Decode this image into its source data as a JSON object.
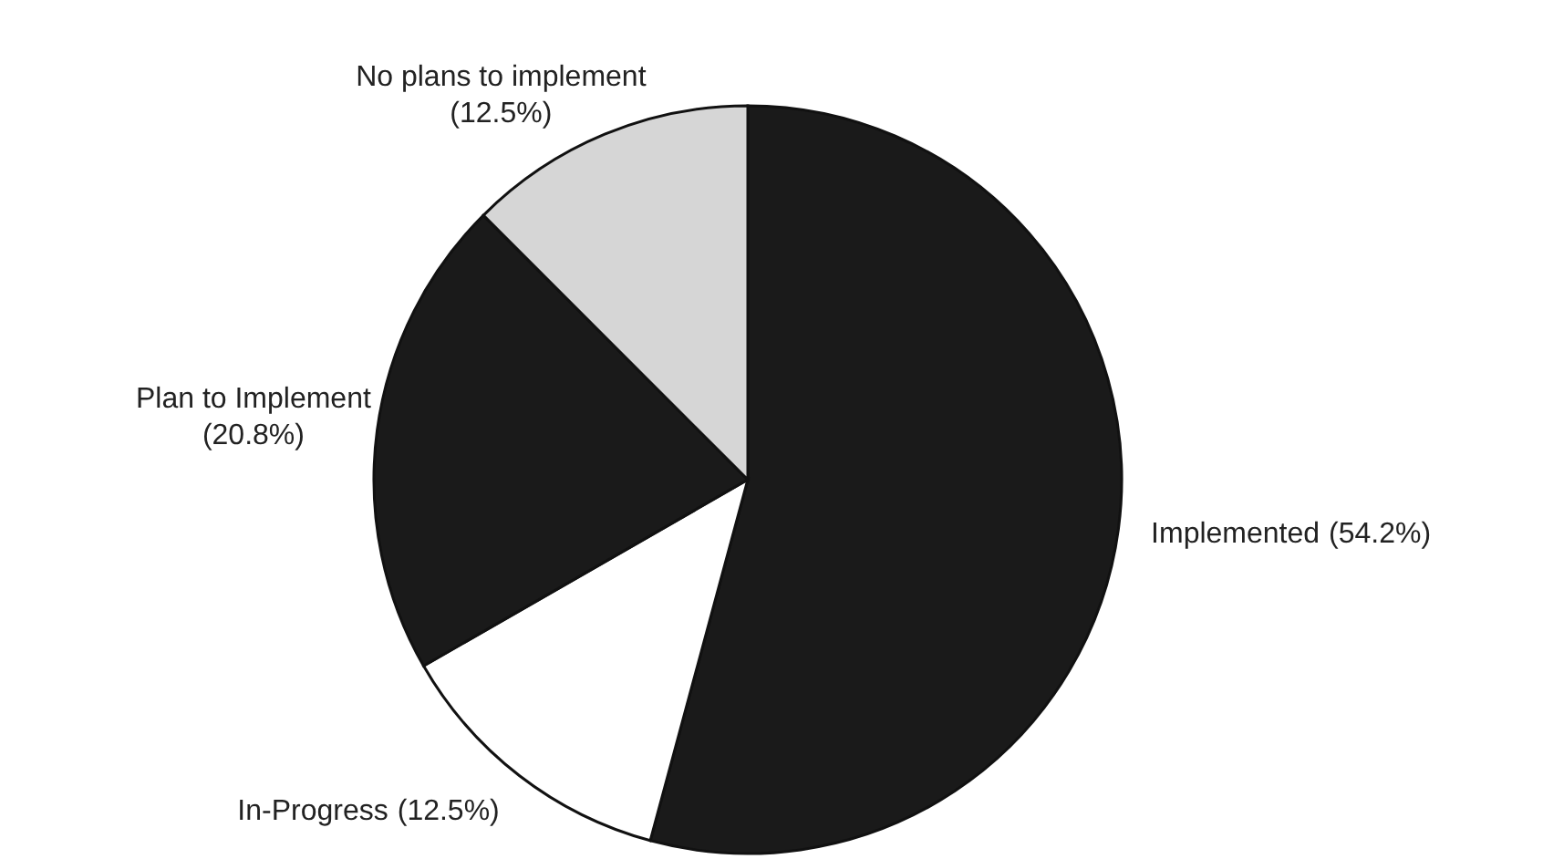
{
  "chart_data": {
    "type": "pie",
    "categories": [
      "Implemented",
      "In-Progress",
      "Plan to Implement",
      "No plans to implement"
    ],
    "values": [
      54.2,
      12.5,
      20.8,
      12.5
    ],
    "value_labels": [
      "(54.2%)",
      "(12.5%)",
      "(20.8%)",
      "(12.5%)"
    ],
    "colors": [
      "#1a1a1a",
      "#ffffff",
      "#1a1a1a",
      "#d6d6d6"
    ]
  }
}
